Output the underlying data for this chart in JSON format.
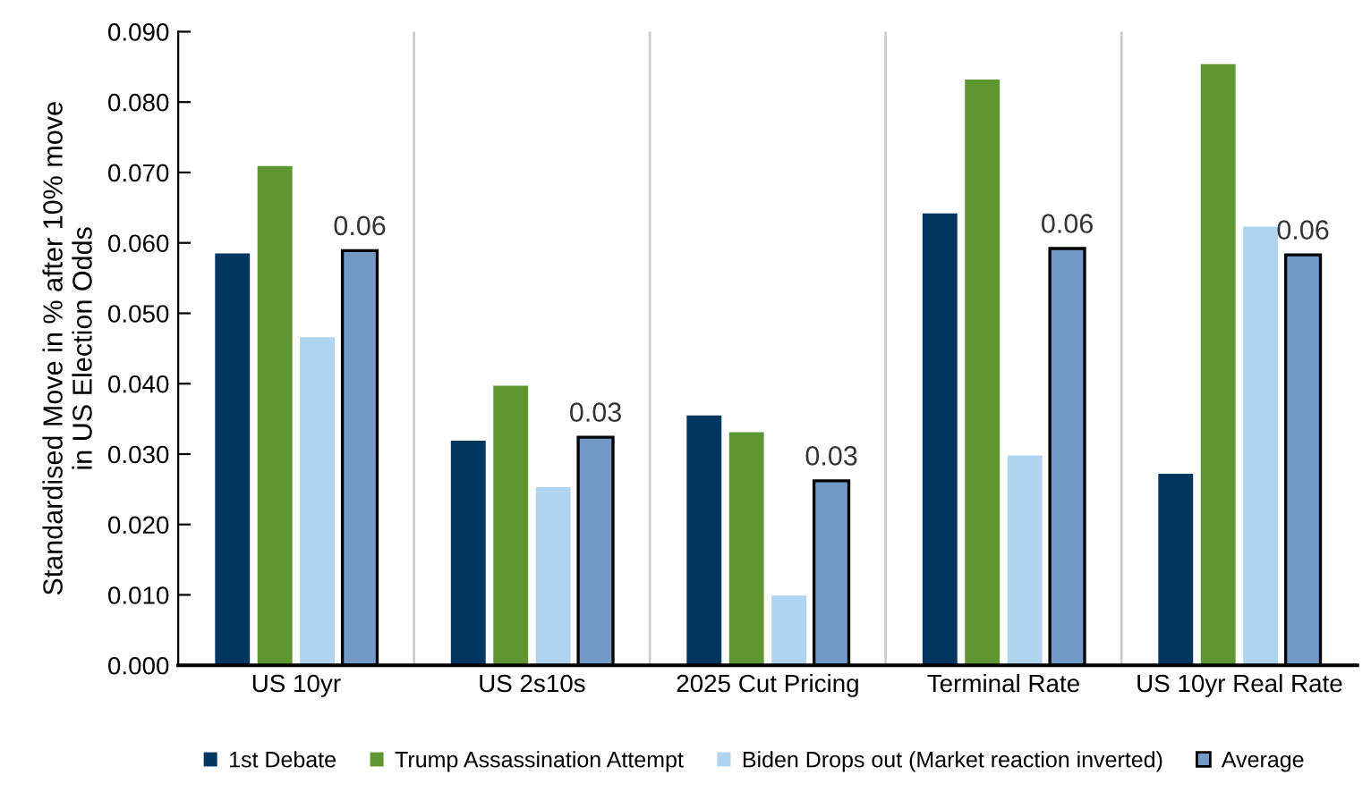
{
  "chart_data": {
    "type": "bar",
    "ylabel": "Standardised Move in % after 10% move\nin US Election Odds",
    "categories": [
      "US 10yr",
      "US 2s10s",
      "2025 Cut Pricing",
      "Terminal Rate",
      "US 10yr Real Rate"
    ],
    "series": [
      {
        "name": "1st Debate",
        "color": "#003660",
        "values": [
          0.0585,
          0.0319,
          0.0355,
          0.0642,
          0.0272
        ]
      },
      {
        "name": "Trump Assassination Attempt",
        "color": "#5e9732",
        "values": [
          0.0709,
          0.0397,
          0.0331,
          0.0832,
          0.0854
        ]
      },
      {
        "name": "Biden Drops out (Market reaction inverted)",
        "color": "#afd4f0",
        "values": [
          0.0466,
          0.0253,
          0.0099,
          0.0298,
          0.0623
        ]
      },
      {
        "name": "Average",
        "color": "#7399c6",
        "values": [
          0.0589,
          0.0324,
          0.0262,
          0.0592,
          0.0583
        ],
        "value_labels": [
          "0.06",
          "0.03",
          "0.03",
          "0.06",
          "0.06"
        ]
      }
    ],
    "ylim": [
      0,
      0.09
    ],
    "yticks": [
      {
        "value": 0,
        "label": "0.000"
      },
      {
        "value": 0.01,
        "label": "0.010"
      },
      {
        "value": 0.02,
        "label": "0.020"
      },
      {
        "value": 0.03,
        "label": "0.030"
      },
      {
        "value": 0.04,
        "label": "0.040"
      },
      {
        "value": 0.05,
        "label": "0.050"
      },
      {
        "value": 0.06,
        "label": "0.060"
      },
      {
        "value": 0.07,
        "label": "0.070"
      },
      {
        "value": 0.08,
        "label": "0.080"
      },
      {
        "value": 0.09,
        "label": "0.090"
      }
    ],
    "grid": "x",
    "legend": "bottom"
  }
}
